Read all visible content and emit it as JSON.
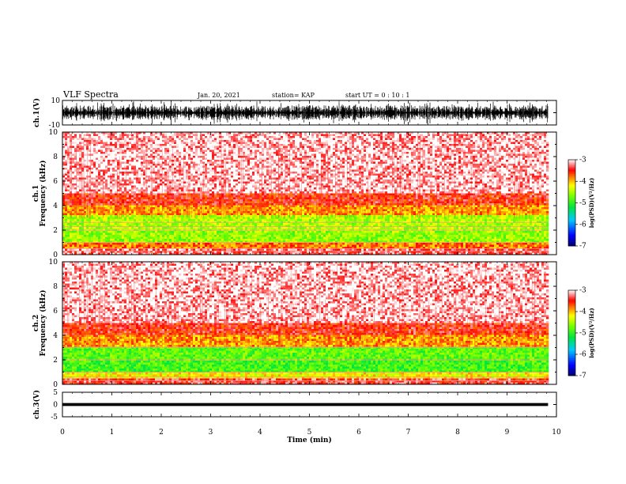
{
  "header": {
    "title": "VLF Spectra",
    "date": "Jan. 20, 2021",
    "station": "station= KAP",
    "start": "start  UT =   0 : 10 : 1"
  },
  "chart_data": [
    {
      "type": "line",
      "name": "ch1-waveform",
      "ylabel": "ch.1(V)",
      "ylim": [
        -10,
        10
      ],
      "yticks": [
        "10",
        "-10"
      ],
      "xlim": [
        0,
        10
      ],
      "x_end": 9.83,
      "description_levels": {
        "envelope_min": -10,
        "envelope_max": 10
      }
    },
    {
      "type": "heatmap",
      "name": "ch1-spectrogram",
      "ylabel": "ch.1",
      "ylabel2": "Frequency  (kHz)",
      "ylim": [
        0,
        10
      ],
      "yticks": [
        "0",
        "2",
        "4",
        "6",
        "8",
        "10"
      ],
      "xlim": [
        0,
        10
      ],
      "x_end": 9.83,
      "bands": [
        {
          "from": 0.0,
          "to": 0.5,
          "level": -3.3
        },
        {
          "from": 0.5,
          "to": 1.0,
          "level": -3.8
        },
        {
          "from": 1.0,
          "to": 2.0,
          "level": -4.6
        },
        {
          "from": 2.0,
          "to": 3.3,
          "level": -4.5
        },
        {
          "from": 3.3,
          "to": 4.0,
          "level": -3.9
        },
        {
          "from": 4.0,
          "to": 5.0,
          "level": -3.5
        },
        {
          "from": 5.0,
          "to": 10.0,
          "level": -3.1
        }
      ],
      "lines_khz": [
        0.3,
        0.5,
        1.0,
        2.0,
        2.3,
        2.6
      ]
    },
    {
      "type": "heatmap",
      "name": "ch2-spectrogram",
      "ylabel": "ch.2",
      "ylabel2": "Frequency  (kHz)",
      "ylim": [
        0,
        10
      ],
      "yticks": [
        "0",
        "2",
        "4",
        "6",
        "8",
        "10"
      ],
      "xlim": [
        0,
        10
      ],
      "x_end": 9.83,
      "bands": [
        {
          "from": 0.0,
          "to": 0.5,
          "level": -3.4
        },
        {
          "from": 0.5,
          "to": 1.0,
          "level": -4.2
        },
        {
          "from": 1.0,
          "to": 2.0,
          "level": -4.9
        },
        {
          "from": 2.0,
          "to": 3.0,
          "level": -4.8
        },
        {
          "from": 3.0,
          "to": 4.0,
          "level": -3.9
        },
        {
          "from": 4.0,
          "to": 5.0,
          "level": -3.5
        },
        {
          "from": 5.0,
          "to": 10.0,
          "level": -3.1
        }
      ],
      "lines_khz": [
        0.3,
        0.6,
        1.0,
        2.0,
        3.0
      ]
    },
    {
      "type": "line",
      "name": "ch3-waveform",
      "ylabel": "ch.3(V)",
      "ylim": [
        -5,
        5
      ],
      "yticks": [
        "5",
        "0",
        "-5"
      ],
      "xlim": [
        0,
        10
      ],
      "x_end": 9.83,
      "center": 0,
      "amplitude": 0.6,
      "xlabel": "Time  (min)",
      "xticks": [
        "0",
        "1",
        "2",
        "3",
        "4",
        "5",
        "6",
        "7",
        "8",
        "9",
        "10"
      ]
    }
  ],
  "colorbars": [
    {
      "label": "log(PSD)(V²/Hz)",
      "range": [
        -7,
        -3
      ],
      "ticks": [
        "-3",
        "-4",
        "-5",
        "-6",
        "-7"
      ]
    },
    {
      "label": "log(PSD)(V²/Hz)",
      "range": [
        -7,
        -3
      ],
      "ticks": [
        "-3",
        "-4",
        "-5",
        "-6",
        "-7"
      ]
    }
  ],
  "colors": {
    "low": "#0000c8",
    "mid_low": "#00c8ff",
    "mid": "#40ff00",
    "mid_high": "#ffff00",
    "high": "#ff0000",
    "max": "#ffffff"
  }
}
